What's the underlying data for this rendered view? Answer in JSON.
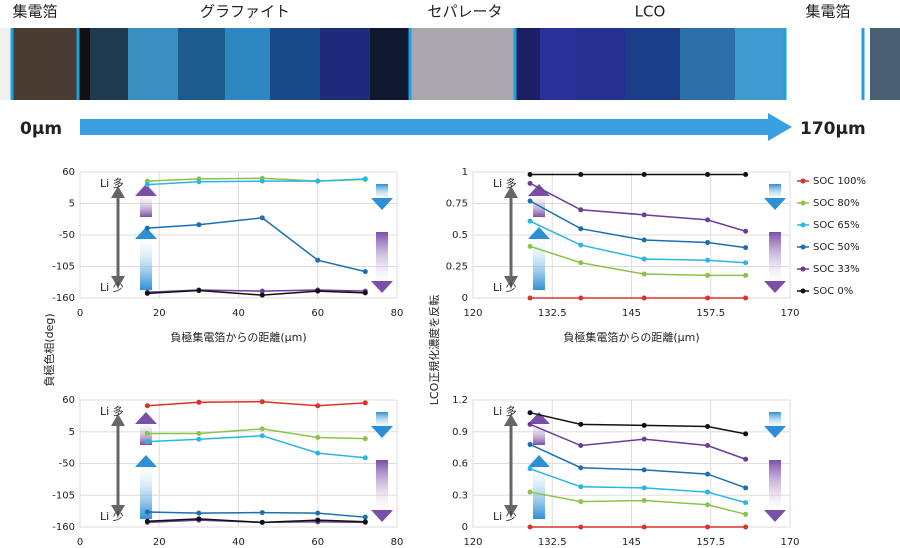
{
  "header": {
    "labels": [
      "集電箔",
      "グラファイト",
      "セパレータ",
      "LCO",
      "集電箔"
    ],
    "start": "0μm",
    "end": "170μm"
  },
  "chart_data": [
    {
      "type": "line",
      "xlabel": "負極集電箔からの距離(μm)",
      "ylabel": "負極色相(deg)",
      "annotations": [
        "Li 多",
        "Li 少"
      ],
      "x": [
        17,
        30,
        46,
        60,
        72
      ],
      "xlim": [
        0,
        80
      ],
      "xticks": [
        0,
        20,
        40,
        60,
        80
      ],
      "ylim": [
        -160,
        60
      ],
      "yticks": [
        -160,
        -105,
        -50,
        5,
        60
      ],
      "grid": true,
      "series": [
        {
          "name": "SOC 80%",
          "color": "#8bc34a",
          "values": [
            44,
            48,
            49,
            44,
            47
          ]
        },
        {
          "name": "SOC 65%",
          "color": "#29b6e6",
          "values": [
            38,
            43,
            44,
            44,
            48
          ]
        },
        {
          "name": "SOC 50%",
          "color": "#1a6fb0",
          "values": [
            -38,
            -32,
            -20,
            -94,
            -114
          ]
        },
        {
          "name": "SOC 33%",
          "color": "#6a3d9a",
          "values": [
            -150,
            -146,
            -148,
            -146,
            -148
          ]
        },
        {
          "name": "SOC 0%",
          "color": "#111111",
          "values": [
            -152,
            -147,
            -155,
            -148,
            -151
          ]
        }
      ]
    },
    {
      "type": "line",
      "xlabel": "負極集電箔からの距離(μm)",
      "ylabel": "LCO正規化濃度を反転",
      "annotations": [
        "Li 多",
        "Li 少"
      ],
      "x": [
        129,
        137,
        147,
        157,
        163
      ],
      "xlim": [
        120,
        170
      ],
      "xticks": [
        120,
        132.5,
        145,
        157.5,
        170
      ],
      "ylim": [
        0,
        1
      ],
      "yticks": [
        0,
        0.25,
        0.5,
        0.75,
        1
      ],
      "grid": true,
      "series": [
        {
          "name": "SOC 100%",
          "color": "#d9342b",
          "values": [
            0,
            0,
            0,
            0,
            0
          ]
        },
        {
          "name": "SOC 80%",
          "color": "#8bc34a",
          "values": [
            0.41,
            0.28,
            0.19,
            0.18,
            0.18
          ]
        },
        {
          "name": "SOC 65%",
          "color": "#29b6e6",
          "values": [
            0.61,
            0.42,
            0.31,
            0.3,
            0.28
          ]
        },
        {
          "name": "SOC 50%",
          "color": "#1a6fb0",
          "values": [
            0.77,
            0.55,
            0.46,
            0.44,
            0.4
          ]
        },
        {
          "name": "SOC 33%",
          "color": "#6a3d9a",
          "values": [
            0.91,
            0.7,
            0.66,
            0.62,
            0.53
          ]
        },
        {
          "name": "SOC 0%",
          "color": "#111111",
          "values": [
            0.98,
            0.98,
            0.98,
            0.98,
            0.98
          ]
        }
      ]
    },
    {
      "type": "line",
      "annotations": [
        "Li 多",
        "Li 少"
      ],
      "x": [
        17,
        30,
        46,
        60,
        72
      ],
      "xlim": [
        0,
        80
      ],
      "xticks": [
        0,
        20,
        40,
        60,
        80
      ],
      "ylim": [
        -160,
        60
      ],
      "yticks": [
        -160,
        -105,
        -50,
        5,
        60
      ],
      "grid": true,
      "series": [
        {
          "name": "SOC 100%",
          "color": "#d9342b",
          "values": [
            50,
            56,
            57,
            50,
            55
          ]
        },
        {
          "name": "SOC 80%",
          "color": "#8bc34a",
          "values": [
            2,
            2,
            10,
            -5,
            -7
          ]
        },
        {
          "name": "SOC 65%",
          "color": "#29b6e6",
          "values": [
            -12,
            -8,
            -2,
            -32,
            -40
          ]
        },
        {
          "name": "SOC 50%",
          "color": "#1a6fb0",
          "values": [
            -134,
            -136,
            -135,
            -136,
            -143
          ]
        },
        {
          "name": "SOC 33%",
          "color": "#6a3d9a",
          "values": [
            -152,
            -148,
            -152,
            -151,
            -152
          ]
        },
        {
          "name": "SOC 0%",
          "color": "#111111",
          "values": [
            -150,
            -146,
            -152,
            -148,
            -151
          ]
        }
      ]
    },
    {
      "type": "line",
      "annotations": [
        "Li 多",
        "Li 少"
      ],
      "x": [
        129,
        137,
        147,
        157,
        163
      ],
      "xlim": [
        120,
        170
      ],
      "xticks": [
        120,
        132.5,
        145,
        157.5,
        170
      ],
      "ylim": [
        0,
        1.2
      ],
      "yticks": [
        0,
        0.3,
        0.6,
        0.9,
        1.2
      ],
      "grid": true,
      "series": [
        {
          "name": "SOC 100%",
          "color": "#d9342b",
          "values": [
            0,
            0,
            0,
            0,
            0
          ]
        },
        {
          "name": "SOC 80%",
          "color": "#8bc34a",
          "values": [
            0.33,
            0.24,
            0.25,
            0.21,
            0.12
          ]
        },
        {
          "name": "SOC 65%",
          "color": "#29b6e6",
          "values": [
            0.55,
            0.38,
            0.37,
            0.33,
            0.23
          ]
        },
        {
          "name": "SOC 50%",
          "color": "#1a6fb0",
          "values": [
            0.78,
            0.56,
            0.54,
            0.5,
            0.37
          ]
        },
        {
          "name": "SOC 33%",
          "color": "#6a3d9a",
          "values": [
            0.97,
            0.77,
            0.83,
            0.77,
            0.64
          ]
        },
        {
          "name": "SOC 0%",
          "color": "#111111",
          "values": [
            1.08,
            0.97,
            0.96,
            0.95,
            0.88
          ]
        }
      ]
    }
  ]
}
